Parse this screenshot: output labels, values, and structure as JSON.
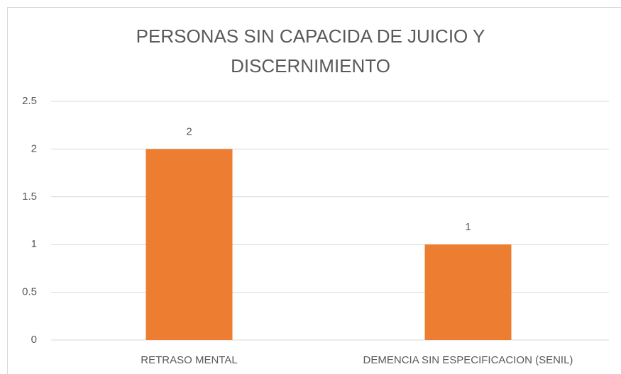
{
  "chart_data": {
    "type": "bar",
    "title": "PERSONAS SIN CAPACIDA DE JUICIO Y DISCERNIMIENTO",
    "categories": [
      "RETRASO MENTAL",
      "DEMENCIA SIN ESPECIFICACION (SENIL)"
    ],
    "values": [
      2,
      1
    ],
    "color": "#ed7d31",
    "ylim": [
      0,
      2.5
    ],
    "yticks": [
      0,
      0.5,
      1,
      1.5,
      2,
      2.5
    ],
    "grid": true,
    "data_labels": true
  }
}
